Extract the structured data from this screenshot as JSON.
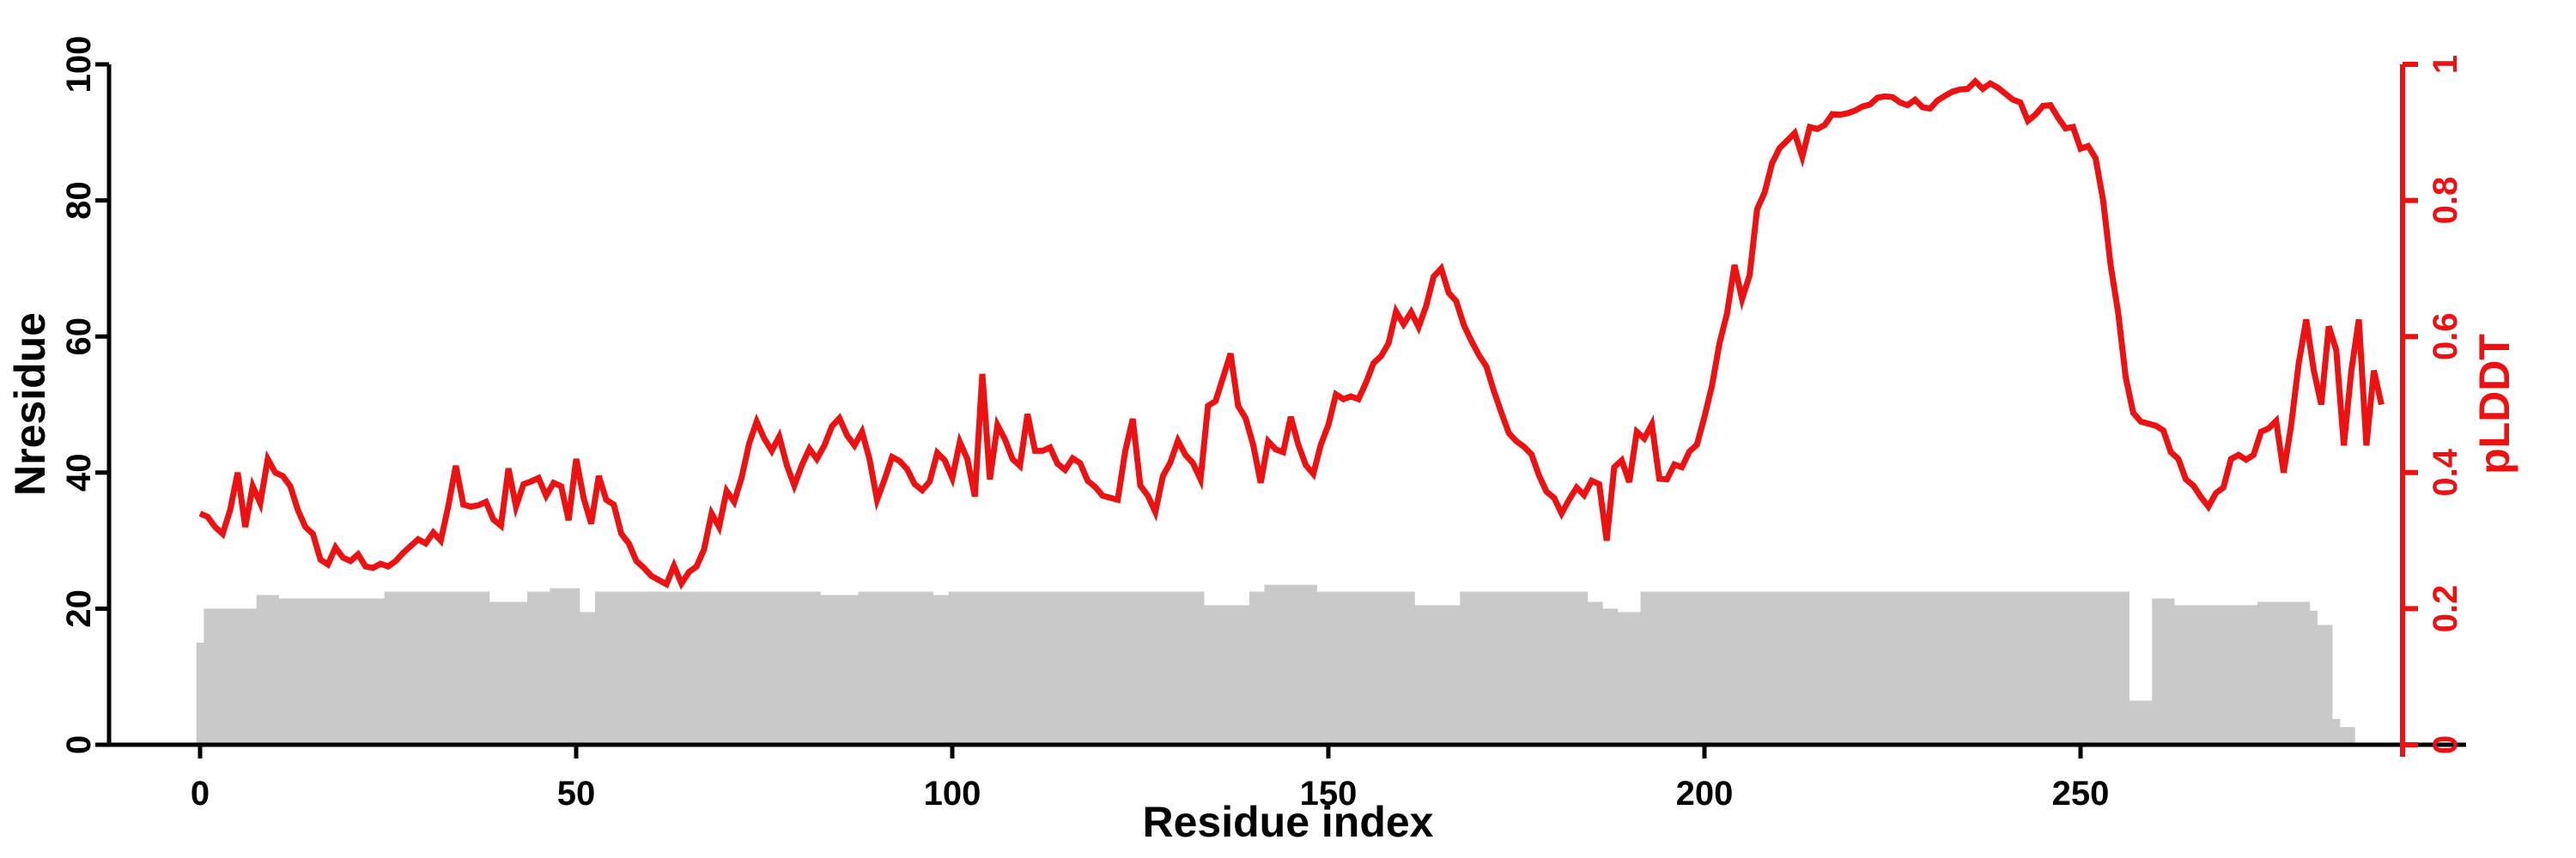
{
  "chart_data": {
    "type": "line+bar",
    "title": "",
    "xlabel": "Residue index",
    "left_ylabel": "Nresidue",
    "right_ylabel": "pLDDT",
    "x_ticks": [
      0,
      50,
      100,
      150,
      200,
      250
    ],
    "left_y_ticks": [
      0,
      20,
      40,
      60,
      80,
      100
    ],
    "right_y_ticks": [
      "0",
      "0.2",
      "0.4",
      "0.6",
      "0.8",
      "1"
    ],
    "left_y_range": [
      0,
      100
    ],
    "right_y_range": [
      0,
      1
    ],
    "x_range": [
      0,
      290
    ],
    "grid": false,
    "legend": "none",
    "colors": {
      "line": "#ee1111",
      "bars": "#c9c9c9",
      "axis": "#000000",
      "right_axis": "#ee1111",
      "background": "#ffffff"
    },
    "x_start": 0,
    "x_step": 1,
    "series": [
      {
        "name": "Nresidue",
        "type": "bar",
        "axis": "left",
        "values": [
          15,
          20,
          20,
          20,
          20,
          20,
          20,
          20,
          22,
          22,
          22,
          21.5,
          21.5,
          21.5,
          21.5,
          21.5,
          21.5,
          21.5,
          21.5,
          21.5,
          21.5,
          21.5,
          21.5,
          21.5,
          21.5,
          22.5,
          22.5,
          22.5,
          22.5,
          22.5,
          22.5,
          22.5,
          22.5,
          22.5,
          22.5,
          22.5,
          22.5,
          22.5,
          22.5,
          21,
          21,
          21,
          21,
          21,
          22.5,
          22.5,
          22.5,
          23,
          23,
          23,
          23,
          19.5,
          19.5,
          22.5,
          22.5,
          22.5,
          22.5,
          22.5,
          22.5,
          22.5,
          22.5,
          22.5,
          22.5,
          22.5,
          22.5,
          22.5,
          22.5,
          22.5,
          22.5,
          22.5,
          22.5,
          22.5,
          22.5,
          22.5,
          22.5,
          22.5,
          22.5,
          22.5,
          22.5,
          22.5,
          22.5,
          22.5,
          22.5,
          22,
          22,
          22,
          22,
          22,
          22.5,
          22.5,
          22.5,
          22.5,
          22.5,
          22.5,
          22.5,
          22.5,
          22.5,
          22.5,
          22,
          22,
          22.5,
          22.5,
          22.5,
          22.5,
          22.5,
          22.5,
          22.5,
          22.5,
          22.5,
          22.5,
          22.5,
          22.5,
          22.5,
          22.5,
          22.5,
          22.5,
          22.5,
          22.5,
          22.5,
          22.5,
          22.5,
          22.5,
          22.5,
          22.5,
          22.5,
          22.5,
          22.5,
          22.5,
          22.5,
          22.5,
          22.5,
          22.5,
          22.5,
          22.5,
          20.5,
          20.5,
          20.5,
          20.5,
          20.5,
          20.5,
          22.5,
          22.5,
          23.5,
          23.5,
          23.5,
          23.5,
          23.5,
          23.5,
          23.5,
          22.5,
          22.5,
          22.5,
          22.5,
          22.5,
          22.5,
          22.5,
          22.5,
          22.5,
          22.5,
          22.5,
          22.5,
          22.5,
          20.5,
          20.5,
          20.5,
          20.5,
          20.5,
          20.5,
          22.5,
          22.5,
          22.5,
          22.5,
          22.5,
          22.5,
          22.5,
          22.5,
          22.5,
          22.5,
          22.5,
          22.5,
          22.5,
          22.5,
          22.5,
          22.5,
          22.5,
          21,
          21,
          20,
          20,
          19.5,
          19.5,
          19.5,
          22.5,
          22.5,
          22.5,
          22.5,
          22.5,
          22.5,
          22.5,
          22.5,
          22.5,
          22.5,
          22.5,
          22.5,
          22.5,
          22.5,
          22.5,
          22.5,
          22.5,
          22.5,
          22.5,
          22.5,
          22.5,
          22.5,
          22.5,
          22.5,
          22.5,
          22.5,
          22.5,
          22.5,
          22.5,
          22.5,
          22.5,
          22.5,
          22.5,
          22.5,
          22.5,
          22.5,
          22.5,
          22.5,
          22.5,
          22.5,
          22.5,
          22.5,
          22.5,
          22.5,
          22.5,
          22.5,
          22.5,
          22.5,
          22.5,
          22.5,
          22.5,
          22.5,
          22.5,
          22.5,
          22.5,
          22.5,
          22.5,
          22.5,
          22.5,
          22.5,
          22.5,
          22.5,
          22.5,
          22.5,
          22.5,
          6.5,
          6.5,
          6.5,
          21.5,
          21.5,
          21.5,
          20.5,
          20.5,
          20.5,
          20.5,
          20.5,
          20.5,
          20.5,
          20.5,
          20.5,
          20.5,
          20.5,
          21,
          21,
          21,
          21,
          21,
          21,
          21,
          19.7,
          17.6,
          17.6,
          3.8,
          2.6,
          2.6
        ],
        "value_note": "approximate bar heights read from plot, left axis units"
      },
      {
        "name": "pLDDT",
        "type": "line",
        "axis": "right",
        "values": [
          0.34,
          0.335,
          0.32,
          0.31,
          0.345,
          0.4,
          0.32,
          0.38,
          0.355,
          0.42,
          0.4,
          0.395,
          0.38,
          0.345,
          0.32,
          0.31,
          0.272,
          0.265,
          0.29,
          0.275,
          0.27,
          0.28,
          0.262,
          0.26,
          0.266,
          0.262,
          0.27,
          0.282,
          0.292,
          0.302,
          0.296,
          0.312,
          0.3,
          0.351,
          0.41,
          0.353,
          0.35,
          0.352,
          0.357,
          0.331,
          0.322,
          0.406,
          0.35,
          0.383,
          0.387,
          0.392,
          0.366,
          0.385,
          0.38,
          0.33,
          0.42,
          0.362,
          0.325,
          0.395,
          0.36,
          0.353,
          0.31,
          0.296,
          0.27,
          0.26,
          0.248,
          0.242,
          0.236,
          0.263,
          0.237,
          0.254,
          0.262,
          0.287,
          0.34,
          0.32,
          0.373,
          0.357,
          0.393,
          0.443,
          0.475,
          0.45,
          0.432,
          0.453,
          0.411,
          0.381,
          0.411,
          0.435,
          0.42,
          0.44,
          0.468,
          0.48,
          0.455,
          0.44,
          0.46,
          0.42,
          0.36,
          0.39,
          0.423,
          0.417,
          0.405,
          0.383,
          0.374,
          0.387,
          0.429,
          0.418,
          0.392,
          0.445,
          0.42,
          0.365,
          0.545,
          0.39,
          0.47,
          0.449,
          0.42,
          0.41,
          0.486,
          0.432,
          0.432,
          0.437,
          0.413,
          0.404,
          0.421,
          0.414,
          0.388,
          0.379,
          0.366,
          0.363,
          0.36,
          0.432,
          0.479,
          0.381,
          0.366,
          0.342,
          0.395,
          0.415,
          0.447,
          0.426,
          0.414,
          0.39,
          0.498,
          0.505,
          0.54,
          0.575,
          0.498,
          0.48,
          0.441,
          0.385,
          0.446,
          0.434,
          0.43,
          0.482,
          0.441,
          0.411,
          0.398,
          0.441,
          0.47,
          0.515,
          0.508,
          0.512,
          0.508,
          0.532,
          0.561,
          0.571,
          0.59,
          0.637,
          0.618,
          0.636,
          0.614,
          0.645,
          0.688,
          0.7,
          0.664,
          0.652,
          0.617,
          0.594,
          0.573,
          0.556,
          0.52,
          0.488,
          0.458,
          0.446,
          0.438,
          0.427,
          0.396,
          0.372,
          0.363,
          0.34,
          0.36,
          0.378,
          0.367,
          0.388,
          0.383,
          0.3,
          0.408,
          0.418,
          0.386,
          0.46,
          0.45,
          0.471,
          0.391,
          0.39,
          0.412,
          0.408,
          0.431,
          0.441,
          0.482,
          0.528,
          0.59,
          0.634,
          0.705,
          0.655,
          0.69,
          0.787,
          0.812,
          0.855,
          0.877,
          0.888,
          0.899,
          0.864,
          0.908,
          0.905,
          0.911,
          0.927,
          0.926,
          0.928,
          0.932,
          0.938,
          0.941,
          0.951,
          0.953,
          0.952,
          0.944,
          0.94,
          0.948,
          0.937,
          0.935,
          0.947,
          0.954,
          0.96,
          0.963,
          0.964,
          0.975,
          0.964,
          0.972,
          0.966,
          0.957,
          0.948,
          0.944,
          0.917,
          0.926,
          0.939,
          0.94,
          0.922,
          0.906,
          0.908,
          0.876,
          0.88,
          0.862,
          0.8,
          0.705,
          0.635,
          0.54,
          0.488,
          0.475,
          0.472,
          0.469,
          0.462,
          0.43,
          0.42,
          0.39,
          0.381,
          0.364,
          0.35,
          0.37,
          0.378,
          0.42,
          0.426,
          0.419,
          0.426,
          0.46,
          0.465,
          0.476,
          0.4,
          0.47,
          0.56,
          0.625,
          0.55,
          0.5,
          0.615,
          0.58,
          0.44,
          0.55,
          0.625,
          0.44,
          0.55,
          0.5
        ],
        "value_note": "approximate pLDDT values read from plot, right axis units"
      }
    ]
  }
}
